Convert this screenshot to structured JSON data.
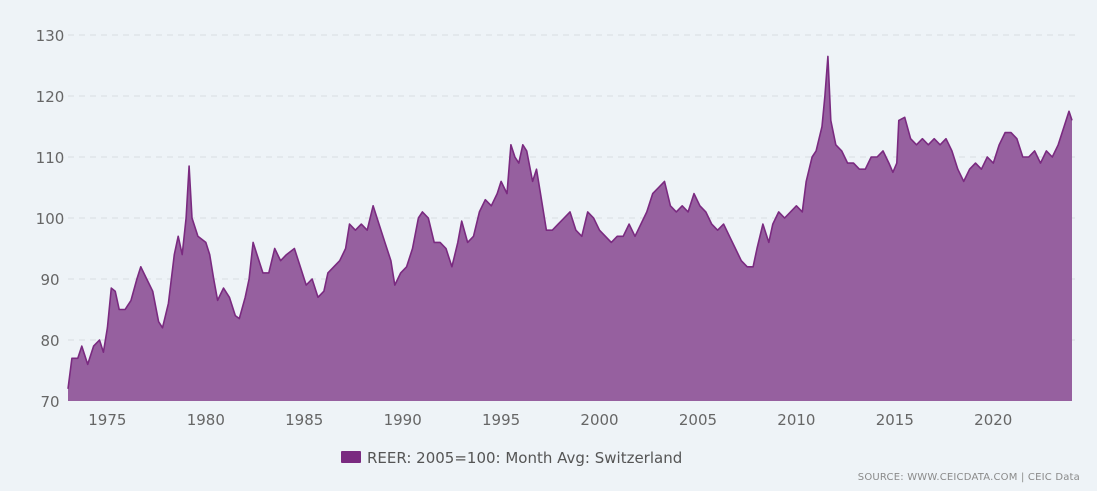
{
  "chart_data": {
    "type": "area",
    "title": "",
    "xlabel": "",
    "ylabel": "",
    "xlim": [
      1973.0,
      2024.0
    ],
    "ylim": [
      70,
      130
    ],
    "y_ticks": [
      70,
      80,
      90,
      100,
      110,
      120,
      130
    ],
    "x_ticks": [
      1975,
      1980,
      1985,
      1990,
      1995,
      2000,
      2005,
      2010,
      2015,
      2020
    ],
    "grid": "horizontal dashed",
    "legend_position": "bottom-center",
    "colors": {
      "fill": "#96609f",
      "line": "#7a2a80",
      "legend_swatch": "#7a2a80"
    },
    "series": [
      {
        "name": "REER: 2005=100: Month Avg: Switzerland",
        "points": [
          [
            1973.0,
            72
          ],
          [
            1973.2,
            77
          ],
          [
            1973.5,
            77
          ],
          [
            1973.7,
            79
          ],
          [
            1974.0,
            76
          ],
          [
            1974.3,
            79
          ],
          [
            1974.6,
            80
          ],
          [
            1974.8,
            78
          ],
          [
            1975.0,
            82
          ],
          [
            1975.2,
            88.5
          ],
          [
            1975.4,
            88
          ],
          [
            1975.6,
            85
          ],
          [
            1975.9,
            85
          ],
          [
            1976.2,
            86.5
          ],
          [
            1976.5,
            90
          ],
          [
            1976.7,
            92
          ],
          [
            1977.0,
            90
          ],
          [
            1977.3,
            88
          ],
          [
            1977.6,
            83
          ],
          [
            1977.8,
            82
          ],
          [
            1978.1,
            86
          ],
          [
            1978.4,
            94
          ],
          [
            1978.6,
            97
          ],
          [
            1978.8,
            94
          ],
          [
            1979.0,
            100
          ],
          [
            1979.15,
            108.5
          ],
          [
            1979.3,
            100
          ],
          [
            1979.6,
            97
          ],
          [
            1980.0,
            96
          ],
          [
            1980.2,
            94
          ],
          [
            1980.4,
            90
          ],
          [
            1980.6,
            86.5
          ],
          [
            1980.9,
            88.5
          ],
          [
            1981.2,
            87
          ],
          [
            1981.5,
            84
          ],
          [
            1981.7,
            83.5
          ],
          [
            1982.0,
            87
          ],
          [
            1982.2,
            90
          ],
          [
            1982.4,
            96
          ],
          [
            1982.6,
            94
          ],
          [
            1982.9,
            91
          ],
          [
            1983.2,
            91
          ],
          [
            1983.5,
            95
          ],
          [
            1983.8,
            93
          ],
          [
            1984.1,
            94
          ],
          [
            1984.5,
            95
          ],
          [
            1984.8,
            92
          ],
          [
            1985.1,
            89
          ],
          [
            1985.4,
            90
          ],
          [
            1985.7,
            87
          ],
          [
            1986.0,
            88
          ],
          [
            1986.2,
            91
          ],
          [
            1986.5,
            92
          ],
          [
            1986.8,
            93
          ],
          [
            1987.1,
            95
          ],
          [
            1987.3,
            99
          ],
          [
            1987.6,
            98
          ],
          [
            1987.9,
            99
          ],
          [
            1988.2,
            98
          ],
          [
            1988.5,
            102
          ],
          [
            1988.8,
            99
          ],
          [
            1989.1,
            96
          ],
          [
            1989.4,
            93
          ],
          [
            1989.6,
            89
          ],
          [
            1989.9,
            91
          ],
          [
            1990.2,
            92
          ],
          [
            1990.5,
            95
          ],
          [
            1990.8,
            100
          ],
          [
            1991.0,
            101
          ],
          [
            1991.3,
            100
          ],
          [
            1991.6,
            96
          ],
          [
            1991.9,
            96
          ],
          [
            1992.2,
            95
          ],
          [
            1992.5,
            92
          ],
          [
            1992.8,
            96
          ],
          [
            1993.0,
            99.5
          ],
          [
            1993.3,
            96
          ],
          [
            1993.6,
            97
          ],
          [
            1993.9,
            101
          ],
          [
            1994.2,
            103
          ],
          [
            1994.5,
            102
          ],
          [
            1994.8,
            104
          ],
          [
            1995.0,
            106
          ],
          [
            1995.3,
            104
          ],
          [
            1995.5,
            112
          ],
          [
            1995.7,
            110
          ],
          [
            1995.9,
            109
          ],
          [
            1996.1,
            112
          ],
          [
            1996.3,
            111
          ],
          [
            1996.6,
            106
          ],
          [
            1996.8,
            108
          ],
          [
            1997.0,
            104
          ],
          [
            1997.3,
            98
          ],
          [
            1997.6,
            98
          ],
          [
            1997.9,
            99
          ],
          [
            1998.2,
            100
          ],
          [
            1998.5,
            101
          ],
          [
            1998.8,
            98
          ],
          [
            1999.1,
            97
          ],
          [
            1999.4,
            101
          ],
          [
            1999.7,
            100
          ],
          [
            2000.0,
            98
          ],
          [
            2000.3,
            97
          ],
          [
            2000.6,
            96
          ],
          [
            2000.9,
            97
          ],
          [
            2001.2,
            97
          ],
          [
            2001.5,
            99
          ],
          [
            2001.8,
            97
          ],
          [
            2002.1,
            99
          ],
          [
            2002.4,
            101
          ],
          [
            2002.7,
            104
          ],
          [
            2003.0,
            105
          ],
          [
            2003.3,
            106
          ],
          [
            2003.6,
            102
          ],
          [
            2003.9,
            101
          ],
          [
            2004.2,
            102
          ],
          [
            2004.5,
            101
          ],
          [
            2004.8,
            104
          ],
          [
            2005.1,
            102
          ],
          [
            2005.4,
            101
          ],
          [
            2005.7,
            99
          ],
          [
            2006.0,
            98
          ],
          [
            2006.3,
            99
          ],
          [
            2006.6,
            97
          ],
          [
            2006.9,
            95
          ],
          [
            2007.2,
            93
          ],
          [
            2007.5,
            92
          ],
          [
            2007.8,
            92
          ],
          [
            2008.0,
            95
          ],
          [
            2008.3,
            99
          ],
          [
            2008.6,
            96
          ],
          [
            2008.8,
            99
          ],
          [
            2009.1,
            101
          ],
          [
            2009.4,
            100
          ],
          [
            2009.7,
            101
          ],
          [
            2010.0,
            102
          ],
          [
            2010.3,
            101
          ],
          [
            2010.5,
            106
          ],
          [
            2010.8,
            110
          ],
          [
            2011.0,
            111
          ],
          [
            2011.3,
            115
          ],
          [
            2011.45,
            120
          ],
          [
            2011.6,
            126.5
          ],
          [
            2011.75,
            116
          ],
          [
            2012.0,
            112
          ],
          [
            2012.3,
            111
          ],
          [
            2012.6,
            109
          ],
          [
            2012.9,
            109
          ],
          [
            2013.2,
            108
          ],
          [
            2013.5,
            108
          ],
          [
            2013.8,
            110
          ],
          [
            2014.1,
            110
          ],
          [
            2014.4,
            111
          ],
          [
            2014.7,
            109
          ],
          [
            2014.9,
            107.5
          ],
          [
            2015.1,
            109
          ],
          [
            2015.2,
            116
          ],
          [
            2015.5,
            116.5
          ],
          [
            2015.8,
            113
          ],
          [
            2016.1,
            112
          ],
          [
            2016.4,
            113
          ],
          [
            2016.7,
            112
          ],
          [
            2017.0,
            113
          ],
          [
            2017.3,
            112
          ],
          [
            2017.6,
            113
          ],
          [
            2017.9,
            111
          ],
          [
            2018.2,
            108
          ],
          [
            2018.5,
            106
          ],
          [
            2018.8,
            108
          ],
          [
            2019.1,
            109
          ],
          [
            2019.4,
            108
          ],
          [
            2019.7,
            110
          ],
          [
            2020.0,
            109
          ],
          [
            2020.3,
            112
          ],
          [
            2020.6,
            114
          ],
          [
            2020.9,
            114
          ],
          [
            2021.2,
            113
          ],
          [
            2021.5,
            110
          ],
          [
            2021.8,
            110
          ],
          [
            2022.1,
            111
          ],
          [
            2022.4,
            109
          ],
          [
            2022.7,
            111
          ],
          [
            2023.0,
            110
          ],
          [
            2023.3,
            112
          ],
          [
            2023.6,
            115
          ],
          [
            2023.85,
            117.5
          ],
          [
            2024.0,
            116
          ]
        ]
      }
    ]
  },
  "footer": {
    "legend_label": "REER: 2005=100: Month Avg: Switzerland",
    "source": "SOURCE: WWW.CEICDATA.COM | CEIC Data"
  }
}
